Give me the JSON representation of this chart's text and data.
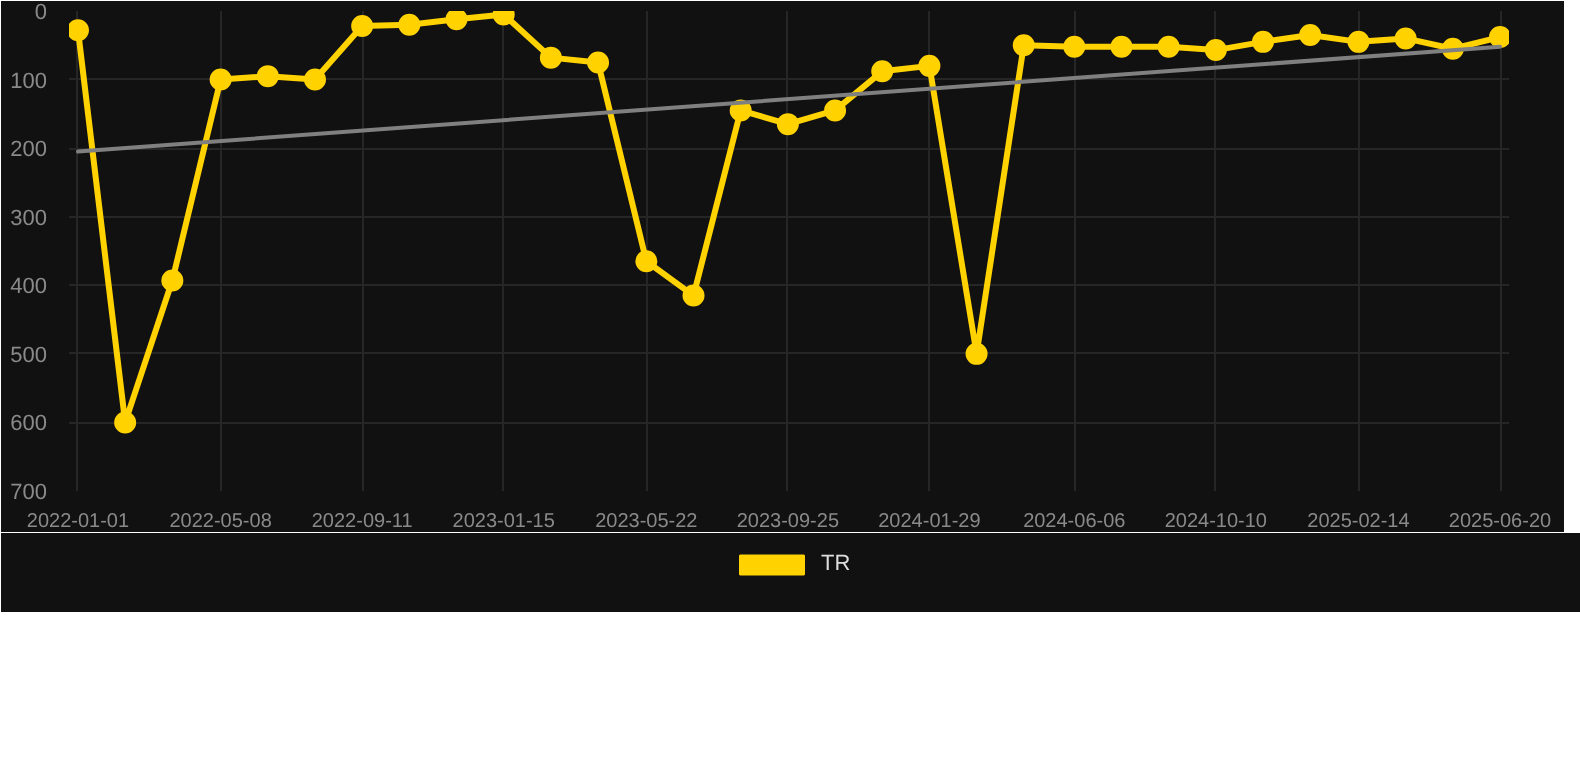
{
  "chart_data": {
    "type": "line",
    "x": [
      "2022-01-01",
      "2022-02-12",
      "2022-03-26",
      "2022-05-08",
      "2022-06-19",
      "2022-07-31",
      "2022-09-11",
      "2022-10-23",
      "2022-12-04",
      "2023-01-15",
      "2023-02-26",
      "2023-04-09",
      "2023-05-22",
      "2023-07-03",
      "2023-08-14",
      "2023-09-25",
      "2023-11-06",
      "2023-12-18",
      "2024-01-29",
      "2024-03-11",
      "2024-04-22",
      "2024-06-06",
      "2024-07-18",
      "2024-08-29",
      "2024-10-10",
      "2024-11-21",
      "2025-01-02",
      "2025-02-14",
      "2025-03-28",
      "2025-05-09",
      "2025-06-20"
    ],
    "series": [
      {
        "name": "TR",
        "color": "#ffd200",
        "marker": "circle",
        "values": [
          28,
          600,
          393,
          100,
          95,
          100,
          22,
          20,
          12,
          5,
          68,
          75,
          365,
          415,
          145,
          165,
          145,
          88,
          80,
          500,
          50,
          52,
          52,
          52,
          57,
          45,
          35,
          45,
          40,
          55,
          38
        ]
      },
      {
        "type": "line",
        "color": "#808080",
        "marker": "none",
        "x": [
          "2022-01-01",
          "2025-06-20"
        ],
        "values": [
          205,
          52
        ]
      }
    ],
    "xlim": [
      "2021-12-24",
      "2025-06-28"
    ],
    "ylim": [
      700,
      0
    ],
    "xticks": [
      "2022-01-01",
      "2022-05-08",
      "2022-09-11",
      "2023-01-15",
      "2023-05-22",
      "2023-09-25",
      "2024-01-29",
      "2024-06-06",
      "2024-10-10",
      "2025-02-14",
      "2025-06-20"
    ],
    "yticks": [
      0,
      100,
      200,
      300,
      400,
      500,
      600,
      700
    ],
    "grid": true,
    "legend": "bottom"
  }
}
